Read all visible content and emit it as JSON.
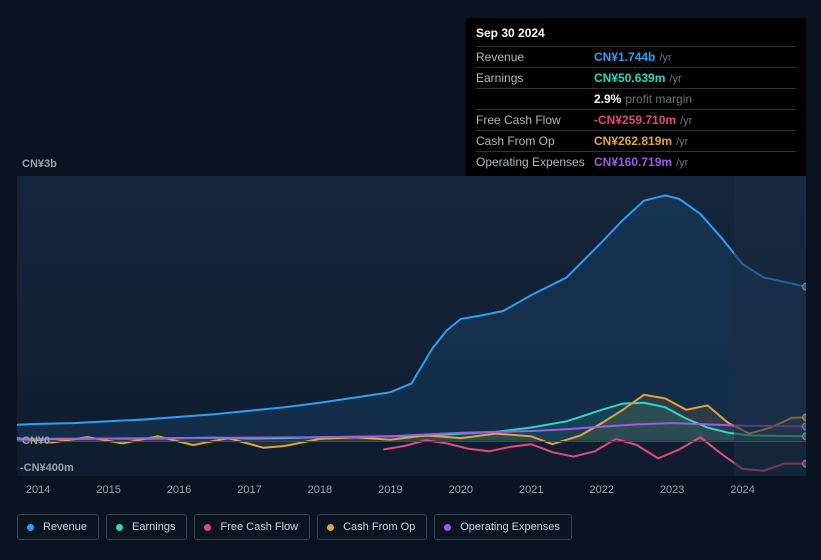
{
  "tooltip": {
    "date": "Sep 30 2024",
    "rows": [
      {
        "label": "Revenue",
        "value": "CN¥1.744b",
        "suffix": "/yr",
        "color": "#2f9ef4"
      },
      {
        "label": "Earnings",
        "value": "CN¥50.639m",
        "suffix": "/yr",
        "color": "#2fd6c0"
      },
      {
        "label": "",
        "pct": "2.9%",
        "pct_label": "profit margin"
      },
      {
        "label": "Free Cash Flow",
        "value": "-CN¥259.710m",
        "suffix": "/yr",
        "color": "#e04b7a"
      },
      {
        "label": "Cash From Op",
        "value": "CN¥262.819m",
        "suffix": "/yr",
        "color": "#e2a33a"
      },
      {
        "label": "Operating Expenses",
        "value": "CN¥160.719m",
        "suffix": "/yr",
        "color": "#9b5ee0"
      }
    ]
  },
  "chart": {
    "type": "line",
    "background_color": "#14263d",
    "y_axis": {
      "top_label": "CN¥3b",
      "zero_label": "CN¥0",
      "bottom_label": "-CN¥400m",
      "top_value": 3000,
      "zero_value": 0,
      "bottom_value": -400
    },
    "x_axis": {
      "ticks": [
        "2014",
        "2015",
        "2016",
        "2017",
        "2018",
        "2019",
        "2020",
        "2021",
        "2022",
        "2023",
        "2024"
      ],
      "x_min": 2013.7,
      "x_max": 2024.9
    },
    "series": {
      "revenue": {
        "color": "#2f9ef4",
        "label": "Revenue",
        "points": [
          [
            2013.7,
            180
          ],
          [
            2014,
            190
          ],
          [
            2014.5,
            200
          ],
          [
            2015,
            220
          ],
          [
            2015.5,
            240
          ],
          [
            2016,
            270
          ],
          [
            2016.5,
            300
          ],
          [
            2017,
            340
          ],
          [
            2017.5,
            380
          ],
          [
            2018,
            430
          ],
          [
            2018.5,
            490
          ],
          [
            2019,
            550
          ],
          [
            2019.3,
            650
          ],
          [
            2019.6,
            1050
          ],
          [
            2019.8,
            1250
          ],
          [
            2020,
            1380
          ],
          [
            2020.3,
            1420
          ],
          [
            2020.6,
            1470
          ],
          [
            2021,
            1650
          ],
          [
            2021.5,
            1850
          ],
          [
            2022,
            2250
          ],
          [
            2022.3,
            2500
          ],
          [
            2022.6,
            2720
          ],
          [
            2022.9,
            2780
          ],
          [
            2023.1,
            2740
          ],
          [
            2023.4,
            2570
          ],
          [
            2023.7,
            2300
          ],
          [
            2024,
            2000
          ],
          [
            2024.3,
            1850
          ],
          [
            2024.6,
            1800
          ],
          [
            2024.9,
            1744
          ]
        ]
      },
      "earnings": {
        "color": "#2fd6c0",
        "label": "Earnings",
        "points": [
          [
            2013.7,
            15
          ],
          [
            2014.5,
            20
          ],
          [
            2015,
            25
          ],
          [
            2015.5,
            22
          ],
          [
            2016,
            30
          ],
          [
            2016.5,
            35
          ],
          [
            2017,
            25
          ],
          [
            2017.5,
            30
          ],
          [
            2018,
            40
          ],
          [
            2018.5,
            45
          ],
          [
            2019,
            50
          ],
          [
            2019.5,
            55
          ],
          [
            2020,
            80
          ],
          [
            2020.5,
            100
          ],
          [
            2021,
            150
          ],
          [
            2021.5,
            220
          ],
          [
            2022,
            350
          ],
          [
            2022.3,
            420
          ],
          [
            2022.6,
            430
          ],
          [
            2022.9,
            380
          ],
          [
            2023.2,
            250
          ],
          [
            2023.5,
            150
          ],
          [
            2023.8,
            90
          ],
          [
            2024.1,
            60
          ],
          [
            2024.5,
            55
          ],
          [
            2024.9,
            51
          ]
        ]
      },
      "fcf": {
        "color": "#e04b7a",
        "label": "Free Cash Flow",
        "start": 2018.9,
        "points": [
          [
            2018.9,
            -100
          ],
          [
            2019.2,
            -60
          ],
          [
            2019.5,
            5
          ],
          [
            2019.8,
            -30
          ],
          [
            2020.1,
            -90
          ],
          [
            2020.4,
            -120
          ],
          [
            2020.7,
            -70
          ],
          [
            2021,
            -40
          ],
          [
            2021.3,
            -130
          ],
          [
            2021.6,
            -180
          ],
          [
            2021.9,
            -120
          ],
          [
            2022.2,
            20
          ],
          [
            2022.5,
            -50
          ],
          [
            2022.8,
            -200
          ],
          [
            2023.1,
            -100
          ],
          [
            2023.4,
            40
          ],
          [
            2023.7,
            -150
          ],
          [
            2024,
            -320
          ],
          [
            2024.3,
            -340
          ],
          [
            2024.6,
            -260
          ],
          [
            2024.9,
            -260
          ]
        ]
      },
      "cfo": {
        "color": "#e2a33a",
        "label": "Cash From Op",
        "points": [
          [
            2013.7,
            30
          ],
          [
            2014.2,
            -20
          ],
          [
            2014.7,
            40
          ],
          [
            2015.2,
            -30
          ],
          [
            2015.7,
            50
          ],
          [
            2016.2,
            -50
          ],
          [
            2016.7,
            30
          ],
          [
            2017.2,
            -80
          ],
          [
            2017.5,
            -60
          ],
          [
            2018,
            20
          ],
          [
            2018.5,
            40
          ],
          [
            2019,
            10
          ],
          [
            2019.5,
            60
          ],
          [
            2020,
            30
          ],
          [
            2020.5,
            80
          ],
          [
            2021,
            50
          ],
          [
            2021.3,
            -40
          ],
          [
            2021.7,
            60
          ],
          [
            2022,
            200
          ],
          [
            2022.3,
            350
          ],
          [
            2022.6,
            520
          ],
          [
            2022.9,
            480
          ],
          [
            2023.2,
            350
          ],
          [
            2023.5,
            400
          ],
          [
            2023.8,
            200
          ],
          [
            2024.1,
            80
          ],
          [
            2024.4,
            150
          ],
          [
            2024.7,
            260
          ],
          [
            2024.9,
            263
          ]
        ]
      },
      "opex": {
        "color": "#9b5ee0",
        "label": "Operating Expenses",
        "points": [
          [
            2013.7,
            20
          ],
          [
            2015,
            25
          ],
          [
            2016,
            30
          ],
          [
            2017,
            35
          ],
          [
            2018,
            40
          ],
          [
            2019,
            50
          ],
          [
            2019.5,
            70
          ],
          [
            2020,
            90
          ],
          [
            2020.5,
            100
          ],
          [
            2021,
            110
          ],
          [
            2021.5,
            130
          ],
          [
            2022,
            160
          ],
          [
            2022.5,
            185
          ],
          [
            2023,
            200
          ],
          [
            2023.5,
            185
          ],
          [
            2024,
            170
          ],
          [
            2024.5,
            165
          ],
          [
            2024.9,
            161
          ]
        ]
      }
    },
    "legend_order": [
      "revenue",
      "earnings",
      "fcf",
      "cfo",
      "opex"
    ]
  }
}
